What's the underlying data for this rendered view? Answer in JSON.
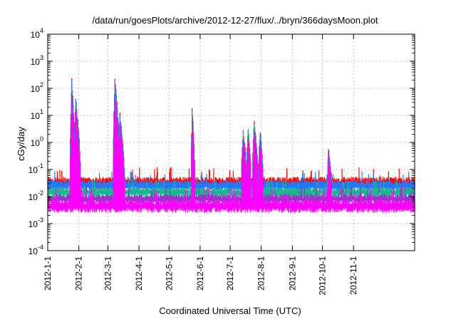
{
  "chart_data": {
    "type": "line",
    "title": "/data/run/goesPlots/archive/2012-12-27/flux/../bryn/366daysMoon.plot",
    "xlabel": "Coordinated Universal Time (UTC)",
    "ylabel": "cGy/day",
    "yscale": "log",
    "ylim_exp": [
      -4,
      4
    ],
    "y_ticks": [
      {
        "base": "10",
        "exp": "-4",
        "e": -4
      },
      {
        "base": "10",
        "exp": "-3",
        "e": -3
      },
      {
        "base": "10",
        "exp": "-2",
        "e": -2
      },
      {
        "base": "10",
        "exp": "-1",
        "e": -1
      },
      {
        "base": "10",
        "exp": "0",
        "e": 0
      },
      {
        "base": "10",
        "exp": "1",
        "e": 1
      },
      {
        "base": "10",
        "exp": "2",
        "e": 2
      },
      {
        "base": "10",
        "exp": "3",
        "e": 3
      },
      {
        "base": "10",
        "exp": "4",
        "e": 4
      }
    ],
    "x_range_days": [
      0,
      366
    ],
    "x_ticks": [
      {
        "label": "2012-1-1",
        "day": 0
      },
      {
        "label": "2012-2-1",
        "day": 31
      },
      {
        "label": "2012-3-1",
        "day": 60
      },
      {
        "label": "2012-4-1",
        "day": 91
      },
      {
        "label": "2012-5-1",
        "day": 121
      },
      {
        "label": "2012-6-1",
        "day": 152
      },
      {
        "label": "2012-7-1",
        "day": 182
      },
      {
        "label": "2012-8-1",
        "day": 213
      },
      {
        "label": "2012-9-1",
        "day": 244
      },
      {
        "label": "2012-10-1",
        "day": 274
      },
      {
        "label": "2012-11-1",
        "day": 305
      }
    ],
    "grid": true,
    "series": [
      {
        "name": "series-red",
        "color": "#ff0000",
        "baseline_log": -1.45,
        "noise": 0.18,
        "spike_scale": 1.0
      },
      {
        "name": "series-blue",
        "color": "#1e7bff",
        "baseline_log": -1.55,
        "noise": 0.16,
        "spike_scale": 0.97
      },
      {
        "name": "series-teal",
        "color": "#17b890",
        "baseline_log": -1.8,
        "noise": 0.15,
        "spike_scale": 0.9
      },
      {
        "name": "series-purple",
        "color": "#9b34c8",
        "baseline_log": -2.05,
        "noise": 0.15,
        "spike_scale": 0.85
      },
      {
        "name": "series-magenta",
        "color": "#ff00ff",
        "baseline_log": -2.3,
        "noise": 0.2,
        "spike_scale": 0.8
      }
    ],
    "events": [
      {
        "start_day": 22,
        "peak_day": 24,
        "end_day": 28,
        "peak_log": 2.3
      },
      {
        "start_day": 26,
        "peak_day": 28,
        "end_day": 33,
        "peak_log": 1.6
      },
      {
        "start_day": 65,
        "peak_day": 67,
        "end_day": 73,
        "peak_log": 2.35
      },
      {
        "start_day": 70,
        "peak_day": 72,
        "end_day": 77,
        "peak_log": 1.0
      },
      {
        "start_day": 143,
        "peak_day": 144,
        "end_day": 147,
        "peak_log": 1.25
      },
      {
        "start_day": 193,
        "peak_day": 195,
        "end_day": 199,
        "peak_log": 0.4
      },
      {
        "start_day": 198,
        "peak_day": 200,
        "end_day": 203,
        "peak_log": 0.45
      },
      {
        "start_day": 204,
        "peak_day": 206,
        "end_day": 210,
        "peak_log": 0.75
      },
      {
        "start_day": 210,
        "peak_day": 212,
        "end_day": 215,
        "peak_log": 0.4
      },
      {
        "start_day": 279,
        "peak_day": 280,
        "end_day": 283,
        "peak_log": -0.25
      }
    ]
  }
}
